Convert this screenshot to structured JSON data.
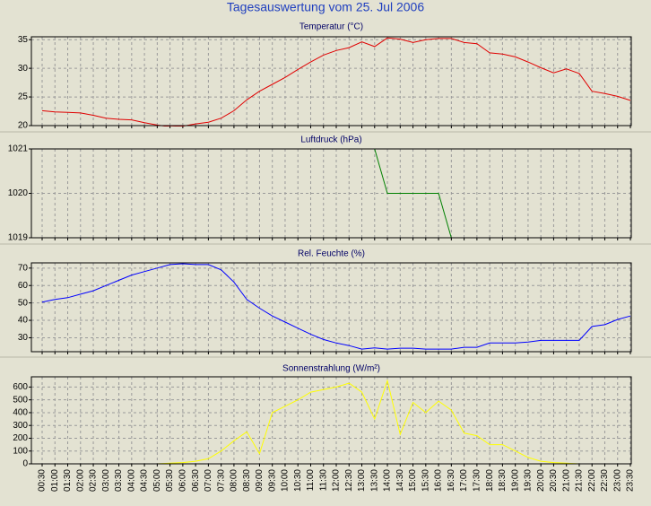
{
  "title": "Tagesauswertung vom 25. Jul 2006",
  "chart_data": [
    {
      "type": "line",
      "title": "Temperatur (°C)",
      "color": "#e00000",
      "ylim": [
        20,
        35.5
      ],
      "yticks": [
        20,
        25,
        30,
        35
      ],
      "grid": true,
      "values": [
        22.6,
        22.4,
        22.3,
        22.2,
        21.8,
        21.3,
        21.1,
        21.0,
        20.5,
        20.1,
        19.8,
        19.9,
        20.3,
        20.6,
        21.3,
        22.6,
        24.5,
        26.0,
        27.2,
        28.4,
        29.8,
        31.1,
        32.3,
        33.1,
        33.6,
        34.6,
        33.8,
        35.3,
        35.1,
        34.5,
        35.0,
        35.2,
        35.2,
        34.5,
        34.3,
        32.7,
        32.5,
        32.0,
        31.1,
        30.1,
        29.2,
        29.9,
        29.1,
        26.0,
        25.6,
        25.1,
        24.4
      ]
    },
    {
      "type": "line",
      "title": "Luftdruck (hPa)",
      "color": "#008000",
      "ylim": [
        1019,
        1021
      ],
      "yticks": [
        1019,
        1020,
        1021
      ],
      "grid": true,
      "values": [
        1021,
        1021,
        1021,
        1021,
        1021,
        1021,
        1021,
        1021,
        1021,
        1021,
        1021,
        1021,
        1021,
        1021,
        1021,
        1021,
        1021,
        1021,
        1021,
        1021,
        1021,
        1021,
        1021,
        1021,
        1021,
        1021,
        1021,
        1020,
        1020,
        1020,
        1020,
        1020,
        1019,
        1019,
        1019,
        1019,
        1019,
        1019,
        1019,
        1019,
        1019,
        1019,
        1019,
        1019,
        1019,
        1019,
        1019
      ]
    },
    {
      "type": "line",
      "title": "Rel. Feuchte (%)",
      "color": "#0000ff",
      "ylim": [
        22,
        73
      ],
      "yticks": [
        30,
        40,
        50,
        60,
        70
      ],
      "grid": true,
      "values": [
        50.5,
        52,
        53,
        55,
        57,
        60,
        63,
        66,
        68,
        70,
        72,
        72.5,
        72,
        72,
        69,
        62,
        52,
        47,
        42.5,
        39,
        35.5,
        32,
        29,
        27,
        25.5,
        23.5,
        24.2,
        23.5,
        24,
        24,
        23.5,
        23.5,
        23.5,
        24.5,
        24.5,
        27,
        27,
        27,
        27.5,
        28.5,
        28.5,
        28.5,
        28.5,
        36.5,
        37.5,
        40.5,
        42.5
      ]
    },
    {
      "type": "line",
      "title": "Sonnenstrahlung (W/m²)",
      "color": "#ffff00",
      "ylim": [
        0,
        680
      ],
      "yticks": [
        0,
        100,
        200,
        300,
        400,
        500,
        600
      ],
      "grid": true,
      "categories": [
        "00:30",
        "01:00",
        "01:30",
        "02:00",
        "02:30",
        "03:00",
        "03:30",
        "04:00",
        "04:30",
        "05:00",
        "05:30",
        "06:00",
        "06:30",
        "07:00",
        "07:30",
        "08:00",
        "08:30",
        "09:00",
        "09:30",
        "10:00",
        "10:30",
        "11:00",
        "11:30",
        "12:00",
        "12:30",
        "13:00",
        "13:30",
        "14:00",
        "14:30",
        "15:00",
        "15:30",
        "16:00",
        "16:30",
        "17:00",
        "17:30",
        "18:00",
        "18:30",
        "19:00",
        "19:30",
        "20:00",
        "20:30",
        "21:00",
        "21:30",
        "22:00",
        "22:30",
        "23:00",
        "23:30"
      ],
      "values": [
        0,
        0,
        0,
        0,
        0,
        0,
        0,
        0,
        0,
        0,
        5,
        10,
        20,
        40,
        100,
        180,
        250,
        80,
        400,
        450,
        500,
        560,
        580,
        600,
        630,
        560,
        350,
        650,
        230,
        480,
        400,
        490,
        420,
        240,
        220,
        150,
        150,
        100,
        50,
        20,
        10,
        5,
        0,
        0,
        0,
        0,
        0
      ]
    }
  ]
}
